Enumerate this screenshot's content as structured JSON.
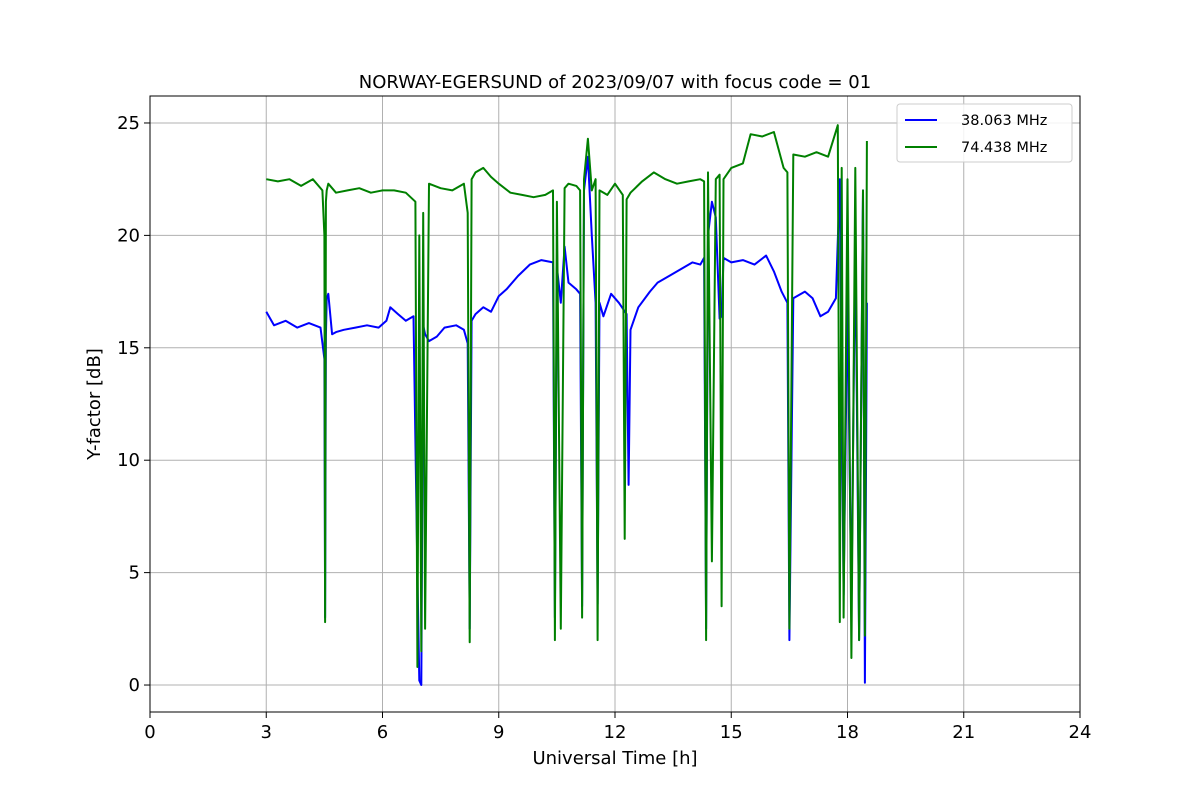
{
  "chart_data": {
    "type": "line",
    "title": "NORWAY-EGERSUND of 2023/09/07 with focus code = 01",
    "xlabel": "Universal Time [h]",
    "ylabel": "Y-factor [dB]",
    "xlim": [
      0,
      24
    ],
    "ylim": [
      -1.2,
      26.2
    ],
    "xticks": [
      "0",
      "3",
      "6",
      "9",
      "12",
      "15",
      "18",
      "21",
      "24"
    ],
    "yticks": [
      "0",
      "5",
      "10",
      "15",
      "20",
      "25"
    ],
    "grid": true,
    "legend_position": "top-right",
    "series": [
      {
        "name": "38.063 MHz",
        "color": "#0000ff",
        "x": [
          3.0,
          3.2,
          3.5,
          3.8,
          4.1,
          4.4,
          4.5,
          4.52,
          4.54,
          4.56,
          4.6,
          4.7,
          4.8,
          5.0,
          5.3,
          5.6,
          5.9,
          6.1,
          6.2,
          6.4,
          6.6,
          6.8,
          6.9,
          6.95,
          7.0,
          7.05,
          7.1,
          7.2,
          7.4,
          7.6,
          7.9,
          8.1,
          8.2,
          8.25,
          8.3,
          8.4,
          8.6,
          8.8,
          9.0,
          9.2,
          9.5,
          9.8,
          10.1,
          10.4,
          10.45,
          10.5,
          10.6,
          10.7,
          10.8,
          11.0,
          11.1,
          11.15,
          11.2,
          11.3,
          11.4,
          11.5,
          11.55,
          11.6,
          11.7,
          11.9,
          12.1,
          12.3,
          12.35,
          12.4,
          12.6,
          12.9,
          13.1,
          13.4,
          13.7,
          14.0,
          14.2,
          14.3,
          14.35,
          14.4,
          14.5,
          14.6,
          14.7,
          14.75,
          14.8,
          15.0,
          15.3,
          15.6,
          15.9,
          16.1,
          16.3,
          16.45,
          16.5,
          16.6,
          16.9,
          17.1,
          17.3,
          17.5,
          17.7,
          17.8,
          17.9,
          18.0,
          18.1,
          18.2,
          18.3,
          18.4,
          18.45,
          18.5
        ],
        "y": [
          16.6,
          16.0,
          16.2,
          15.9,
          16.1,
          15.9,
          14.5,
          3.0,
          15.5,
          17.2,
          17.4,
          15.6,
          15.7,
          15.8,
          15.9,
          16.0,
          15.9,
          16.2,
          16.8,
          16.5,
          16.2,
          16.4,
          5.0,
          0.2,
          0.0,
          16.0,
          15.6,
          15.3,
          15.5,
          15.9,
          16.0,
          15.8,
          15.2,
          2.5,
          16.2,
          16.5,
          16.8,
          16.6,
          17.3,
          17.6,
          18.2,
          18.7,
          18.9,
          18.8,
          3.0,
          18.6,
          17.0,
          19.5,
          17.9,
          17.6,
          17.4,
          3.5,
          22.0,
          23.5,
          20.0,
          17.0,
          3.6,
          17.0,
          16.4,
          17.4,
          17.0,
          16.5,
          8.9,
          15.8,
          16.8,
          17.5,
          17.9,
          18.2,
          18.5,
          18.8,
          18.7,
          19.0,
          2.5,
          20.0,
          21.5,
          20.8,
          16.3,
          16.4,
          19.0,
          18.8,
          18.9,
          18.7,
          19.1,
          18.4,
          17.5,
          17.0,
          2.0,
          17.2,
          17.5,
          17.2,
          16.4,
          16.6,
          17.2,
          22.5,
          4.0,
          17.2,
          3.5,
          20.0,
          2.0,
          22.0,
          0.1,
          17.0
        ]
      },
      {
        "name": "74.438 MHz",
        "color": "#008000",
        "x": [
          3.0,
          3.3,
          3.6,
          3.9,
          4.2,
          4.45,
          4.5,
          4.52,
          4.54,
          4.56,
          4.6,
          4.8,
          5.1,
          5.4,
          5.7,
          6.0,
          6.3,
          6.6,
          6.85,
          6.9,
          6.95,
          7.0,
          7.05,
          7.1,
          7.2,
          7.5,
          7.8,
          8.1,
          8.2,
          8.25,
          8.3,
          8.4,
          8.6,
          8.8,
          9.0,
          9.3,
          9.6,
          9.9,
          10.2,
          10.4,
          10.45,
          10.5,
          10.6,
          10.7,
          10.8,
          11.0,
          11.1,
          11.15,
          11.2,
          11.3,
          11.4,
          11.5,
          11.55,
          11.6,
          11.8,
          12.0,
          12.2,
          12.25,
          12.3,
          12.4,
          12.7,
          13.0,
          13.3,
          13.6,
          13.9,
          14.2,
          14.3,
          14.35,
          14.4,
          14.5,
          14.6,
          14.7,
          14.75,
          14.8,
          15.0,
          15.3,
          15.5,
          15.8,
          16.1,
          16.35,
          16.45,
          16.5,
          16.6,
          16.9,
          17.2,
          17.5,
          17.75,
          17.8,
          17.85,
          17.9,
          18.0,
          18.1,
          18.2,
          18.3,
          18.4,
          18.45,
          18.5
        ],
        "y": [
          22.5,
          22.4,
          22.5,
          22.2,
          22.5,
          22.0,
          20.0,
          2.8,
          21.5,
          22.0,
          22.3,
          21.9,
          22.0,
          22.1,
          21.9,
          22.0,
          22.0,
          21.9,
          21.5,
          0.8,
          20.0,
          1.5,
          21.0,
          2.5,
          22.3,
          22.1,
          22.0,
          22.3,
          21.0,
          1.9,
          22.5,
          22.8,
          23.0,
          22.6,
          22.3,
          21.9,
          21.8,
          21.7,
          21.8,
          22.0,
          2.0,
          21.5,
          2.5,
          22.1,
          22.3,
          22.2,
          22.0,
          3.0,
          22.5,
          24.3,
          22.0,
          22.5,
          2.0,
          22.0,
          21.8,
          22.3,
          21.8,
          6.5,
          21.6,
          21.9,
          22.4,
          22.8,
          22.5,
          22.3,
          22.4,
          22.5,
          22.4,
          2.0,
          22.8,
          5.5,
          22.5,
          22.7,
          3.5,
          22.5,
          23.0,
          23.2,
          24.5,
          24.4,
          24.6,
          23.0,
          22.8,
          2.5,
          23.6,
          23.5,
          23.7,
          23.5,
          24.9,
          2.8,
          23.0,
          3.0,
          22.5,
          1.2,
          23.0,
          2.0,
          22.0,
          2.2,
          24.2
        ]
      }
    ]
  }
}
